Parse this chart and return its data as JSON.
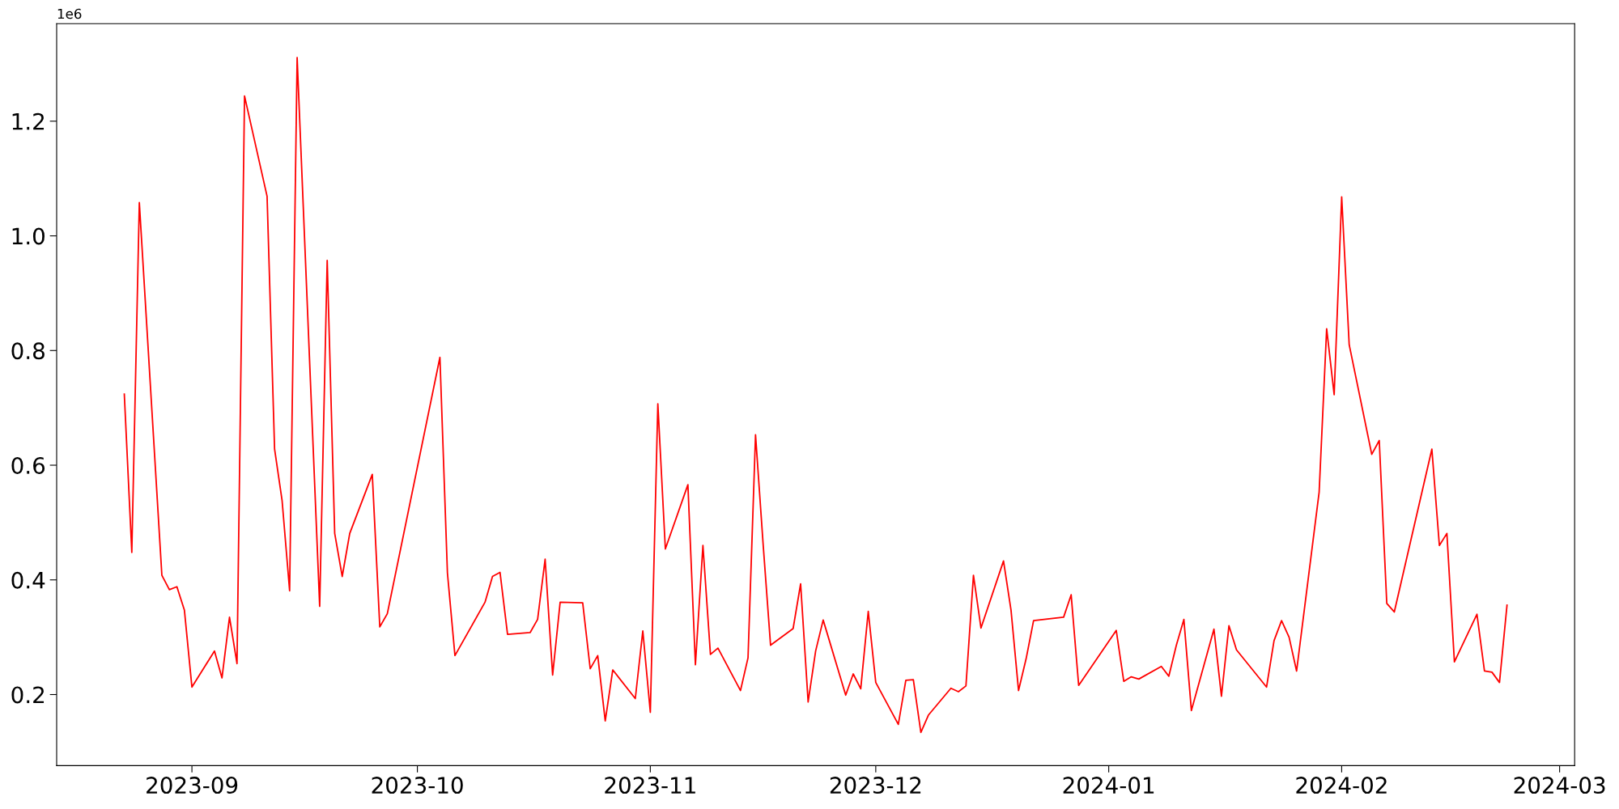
{
  "chart_data": {
    "type": "line",
    "x": [
      "2023-08-23",
      "2023-08-24",
      "2023-08-25",
      "2023-08-28",
      "2023-08-29",
      "2023-08-30",
      "2023-08-31",
      "2023-09-01",
      "2023-09-04",
      "2023-09-05",
      "2023-09-06",
      "2023-09-07",
      "2023-09-08",
      "2023-09-11",
      "2023-09-12",
      "2023-09-13",
      "2023-09-14",
      "2023-09-15",
      "2023-09-18",
      "2023-09-19",
      "2023-09-20",
      "2023-09-21",
      "2023-09-22",
      "2023-09-25",
      "2023-09-26",
      "2023-09-27",
      "2023-10-04",
      "2023-10-05",
      "2023-10-06",
      "2023-10-10",
      "2023-10-11",
      "2023-10-12",
      "2023-10-13",
      "2023-10-16",
      "2023-10-17",
      "2023-10-18",
      "2023-10-19",
      "2023-10-20",
      "2023-10-23",
      "2023-10-24",
      "2023-10-25",
      "2023-10-26",
      "2023-10-27",
      "2023-10-30",
      "2023-10-31",
      "2023-11-01",
      "2023-11-02",
      "2023-11-03",
      "2023-11-06",
      "2023-11-07",
      "2023-11-08",
      "2023-11-09",
      "2023-11-10",
      "2023-11-13",
      "2023-11-14",
      "2023-11-15",
      "2023-11-16",
      "2023-11-17",
      "2023-11-20",
      "2023-11-21",
      "2023-11-22",
      "2023-11-23",
      "2023-11-24",
      "2023-11-27",
      "2023-11-28",
      "2023-11-29",
      "2023-11-30",
      "2023-12-01",
      "2023-12-04",
      "2023-12-05",
      "2023-12-06",
      "2023-12-07",
      "2023-12-08",
      "2023-12-11",
      "2023-12-12",
      "2023-12-13",
      "2023-12-14",
      "2023-12-15",
      "2023-12-18",
      "2023-12-19",
      "2023-12-20",
      "2023-12-21",
      "2023-12-22",
      "2023-12-26",
      "2023-12-27",
      "2023-12-28",
      "2024-01-02",
      "2024-01-03",
      "2024-01-04",
      "2024-01-05",
      "2024-01-08",
      "2024-01-09",
      "2024-01-10",
      "2024-01-11",
      "2024-01-12",
      "2024-01-15",
      "2024-01-16",
      "2024-01-17",
      "2024-01-18",
      "2024-01-22",
      "2024-01-23",
      "2024-01-24",
      "2024-01-25",
      "2024-01-26",
      "2024-01-29",
      "2024-01-30",
      "2024-01-31",
      "2024-02-01",
      "2024-02-02",
      "2024-02-05",
      "2024-02-06",
      "2024-02-07",
      "2024-02-08",
      "2024-02-13",
      "2024-02-14",
      "2024-02-15",
      "2024-02-16",
      "2024-02-19",
      "2024-02-20",
      "2024-02-21",
      "2024-02-22",
      "2024-02-23"
    ],
    "series": [
      {
        "color": "#ff0000",
        "values": [
          0.724,
          0.448,
          1.058,
          0.408,
          0.383,
          0.388,
          0.347,
          0.213,
          0.276,
          0.229,
          0.335,
          0.254,
          1.244,
          1.069,
          0.628,
          0.538,
          0.381,
          1.311,
          0.354,
          0.957,
          0.481,
          0.406,
          0.481,
          0.584,
          0.318,
          0.341,
          0.788,
          0.412,
          0.268,
          0.361,
          0.406,
          0.413,
          0.305,
          0.308,
          0.331,
          0.436,
          0.234,
          0.361,
          0.36,
          0.245,
          0.268,
          0.154,
          0.243,
          0.193,
          0.311,
          0.169,
          0.707,
          0.454,
          0.566,
          0.252,
          0.46,
          0.27,
          0.281,
          0.207,
          0.264,
          0.653,
          0.464,
          0.286,
          0.315,
          0.393,
          0.187,
          0.276,
          0.33,
          0.199,
          0.236,
          0.21,
          0.345,
          0.221,
          0.148,
          0.225,
          0.226,
          0.134,
          0.164,
          0.211,
          0.205,
          0.215,
          0.408,
          0.316,
          0.433,
          0.347,
          0.207,
          0.262,
          0.329,
          0.335,
          0.374,
          0.216,
          0.312,
          0.223,
          0.231,
          0.227,
          0.249,
          0.232,
          0.286,
          0.331,
          0.172,
          0.314,
          0.197,
          0.32,
          0.278,
          0.213,
          0.294,
          0.329,
          0.3,
          0.241,
          0.553,
          0.838,
          0.723,
          1.068,
          0.81,
          0.619,
          0.643,
          0.359,
          0.344,
          0.628,
          0.46,
          0.481,
          0.257,
          0.34,
          0.241,
          0.239,
          0.221,
          0.356
        ]
      }
    ],
    "xlim": [
      "2023-08-14",
      "2024-03-03"
    ],
    "xticks": [
      "2023-09",
      "2023-10",
      "2023-11",
      "2023-12",
      "2024-01",
      "2024-02",
      "2024-03"
    ],
    "ylim": [
      0.076,
      1.37
    ],
    "yticks": [
      0.2,
      0.4,
      0.6,
      0.8,
      {
        "value": 1,
        "label": "1.0"
      },
      1.2
    ],
    "annotations": [
      "1e6"
    ],
    "grid": false,
    "legend": false
  }
}
